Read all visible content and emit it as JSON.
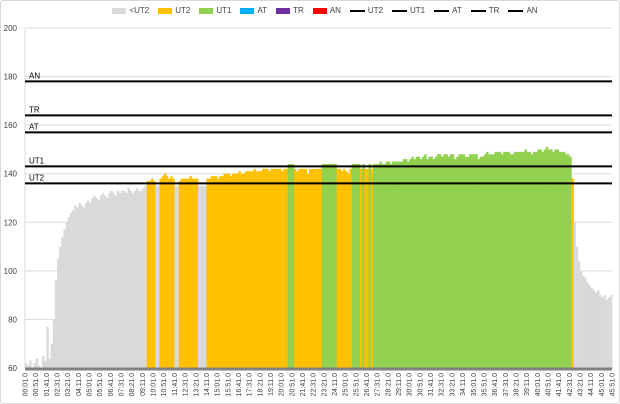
{
  "chart_data": {
    "type": "area",
    "title": "",
    "xlabel": "",
    "ylabel": "",
    "ylim": [
      60,
      200
    ],
    "yticks": [
      60,
      80,
      100,
      120,
      140,
      160,
      180,
      200
    ],
    "grid": true,
    "legend_placement": "top",
    "start_time": "00:01.0",
    "sample_interval_s": 10,
    "xtick_labels": [
      "00:01.0",
      "00:51.0",
      "01:41.0",
      "02:31.0",
      "03:21.0",
      "04:11.0",
      "05:01.0",
      "05:51.0",
      "06:41.0",
      "07:31.0",
      "08:21.0",
      "09:11.0",
      "10:01.0",
      "10:51.0",
      "11:41.0",
      "12:31.0",
      "13:21.0",
      "14:11.0",
      "15:01.0",
      "15:51.0",
      "16:41.0",
      "17:31.0",
      "18:21.0",
      "19:11.0",
      "20:01.0",
      "20:51.0",
      "21:41.0",
      "22:31.0",
      "23:21.0",
      "24:11.0",
      "25:01.0",
      "25:51.0",
      "26:41.0",
      "27:31.0",
      "28:21.0",
      "29:11.0",
      "30:01.0",
      "30:51.0",
      "31:41.0",
      "32:31.0",
      "33:21.0",
      "34:11.0",
      "35:01.0",
      "35:51.0",
      "36:41.0",
      "37:31.0",
      "38:21.0",
      "39:11.0",
      "40:01.0",
      "40:51.0",
      "41:41.0",
      "42:31.0",
      "43:21.0",
      "44:11.0",
      "45:01.0",
      "45:51.0"
    ],
    "zones": [
      {
        "name": "<UT2",
        "color": "#d9d9d9"
      },
      {
        "name": "UT2",
        "color": "#ffc000"
      },
      {
        "name": "UT1",
        "color": "#92d050"
      },
      {
        "name": "AT",
        "color": "#00b0f0"
      },
      {
        "name": "TR",
        "color": "#7030a0"
      },
      {
        "name": "AN",
        "color": "#ff0000"
      }
    ],
    "thresholds": [
      {
        "name": "UT2",
        "value": 136
      },
      {
        "name": "UT1",
        "value": 143
      },
      {
        "name": "AT",
        "value": 157
      },
      {
        "name": "TR",
        "value": 164
      },
      {
        "name": "AN",
        "value": 178
      }
    ],
    "values": [
      62,
      61,
      63,
      60,
      62,
      64,
      61,
      60,
      65,
      63,
      77,
      64,
      70,
      80,
      96,
      105,
      110,
      114,
      117,
      120,
      122,
      124,
      125,
      127,
      126,
      128,
      127,
      126,
      128,
      129,
      128,
      130,
      131,
      130,
      129,
      131,
      132,
      131,
      130,
      132,
      133,
      132,
      131,
      133,
      132,
      133,
      133,
      132,
      134,
      133,
      132,
      133,
      134,
      133,
      133,
      134,
      135,
      137,
      137,
      138,
      137,
      135,
      135,
      138,
      139,
      140,
      139,
      138,
      139,
      138,
      135,
      135,
      137,
      138,
      138,
      138,
      138,
      139,
      138,
      138,
      138,
      135,
      135,
      135,
      135,
      138,
      138,
      139,
      139,
      139,
      138,
      139,
      139,
      140,
      140,
      140,
      139,
      140,
      140,
      140,
      141,
      140,
      140,
      141,
      141,
      141,
      141,
      142,
      141,
      141,
      141,
      142,
      142,
      142,
      141,
      142,
      142,
      142,
      142,
      142,
      141,
      142,
      142,
      144,
      144,
      144,
      142,
      141,
      142,
      142,
      142,
      142,
      140,
      142,
      142,
      142,
      142,
      142,
      142,
      144,
      144,
      144,
      144,
      144,
      144,
      144,
      142,
      142,
      141,
      142,
      141,
      140,
      142,
      144,
      144,
      144,
      144,
      142,
      144,
      142,
      142,
      144,
      142,
      144,
      144,
      144,
      145,
      144,
      144,
      145,
      145,
      144,
      145,
      145,
      145,
      145,
      145,
      146,
      146,
      145,
      146,
      147,
      146,
      147,
      147,
      146,
      147,
      148,
      146,
      147,
      147,
      146,
      147,
      148,
      148,
      147,
      148,
      148,
      147,
      148,
      148,
      146,
      147,
      148,
      148,
      148,
      147,
      147,
      148,
      148,
      148,
      148,
      146,
      147,
      147,
      148,
      149,
      148,
      148,
      148,
      149,
      149,
      149,
      148,
      149,
      149,
      149,
      148,
      148,
      149,
      149,
      149,
      149,
      149,
      150,
      149,
      149,
      148,
      149,
      149,
      150,
      150,
      149,
      150,
      151,
      150,
      150,
      149,
      150,
      150,
      149,
      149,
      149,
      148,
      148,
      147,
      138,
      120,
      110,
      104,
      100,
      98,
      97,
      95,
      94,
      93,
      92,
      91,
      92,
      90,
      89,
      90,
      88,
      89,
      90,
      86
    ]
  }
}
